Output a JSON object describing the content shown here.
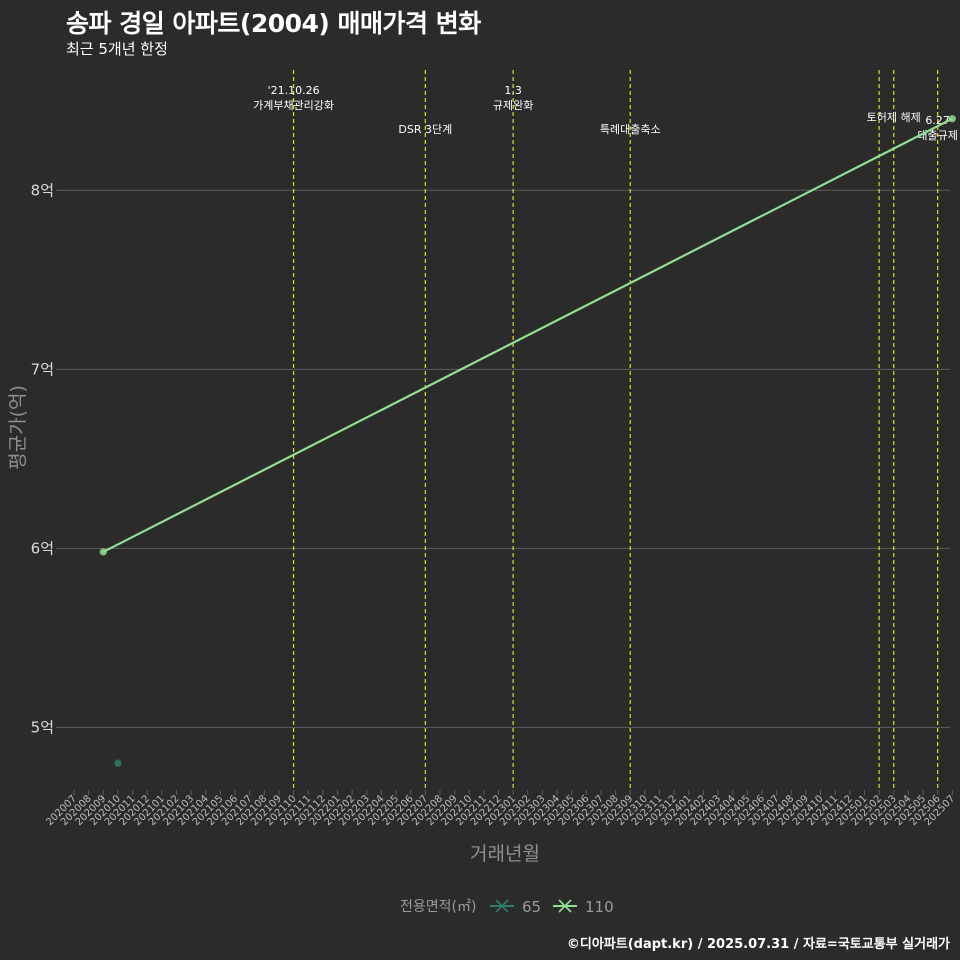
{
  "header": {
    "title": "송파 경일 아파트(2004) 매매가격 변화",
    "subtitle": "최근 5개년 한정"
  },
  "caption": "©디아파트(dapt.kr) / 2025.07.31 / 자료=국토교통부 실거래가",
  "colors": {
    "background": "#2b2b2b",
    "grid": "#5e5e5e",
    "vline": "#dede20",
    "series_65": "#2e7d6a",
    "series_110": "#90e090"
  },
  "chart_data": {
    "type": "line",
    "xlabel": "거래년월",
    "ylabel": "평균가(억)",
    "ylim": [
      4.65,
      8.7
    ],
    "y_ticks": [
      {
        "value": 5,
        "label": "5억"
      },
      {
        "value": 6,
        "label": "6억"
      },
      {
        "value": 7,
        "label": "7억"
      },
      {
        "value": 8,
        "label": "8억"
      }
    ],
    "x_categories": [
      "202007",
      "202008",
      "202009",
      "202010",
      "202011",
      "202012",
      "202101",
      "202102",
      "202103",
      "202104",
      "202105",
      "202106",
      "202107",
      "202108",
      "202109",
      "202110",
      "202111",
      "202112",
      "202201",
      "202202",
      "202203",
      "202204",
      "202205",
      "202206",
      "202207",
      "202208",
      "202209",
      "202210",
      "202211",
      "202212",
      "202301",
      "202302",
      "202303",
      "202304",
      "202305",
      "202306",
      "202307",
      "202308",
      "202309",
      "202310",
      "202311",
      "202312",
      "202401",
      "202402",
      "202403",
      "202404",
      "202405",
      "202406",
      "202407",
      "202408",
      "202409",
      "202410",
      "202411",
      "202412",
      "202501",
      "202502",
      "202503",
      "202504",
      "202505",
      "202506",
      "202507"
    ],
    "series": [
      {
        "name": "65",
        "points": [
          {
            "x": "202010",
            "y": 4.8
          }
        ]
      },
      {
        "name": "110",
        "points": [
          {
            "x": "202009",
            "y": 5.98
          },
          {
            "x": "202507",
            "y": 8.4
          }
        ]
      }
    ],
    "annotations": [
      {
        "x": "202110",
        "lines": [
          "'21.10.26",
          "가계부채관리강화"
        ],
        "row": 0
      },
      {
        "x": "202207",
        "lines": [
          "DSR 3단계"
        ],
        "row": 2
      },
      {
        "x": "202301",
        "lines": [
          "1.3",
          "규제완화"
        ],
        "row": 0
      },
      {
        "x": "202309",
        "lines": [
          "특례대출축소"
        ],
        "row": 2
      },
      {
        "x": "202502",
        "lines": [],
        "row": 0
      },
      {
        "x": "202503",
        "lines": [
          "토허제 해제"
        ],
        "row": 1
      },
      {
        "x": "202506",
        "lines": [
          "6.27",
          "대출규제"
        ],
        "row": 3
      }
    ],
    "legend": {
      "title": "전용면적(㎡)",
      "position": "bottom",
      "items": [
        "65",
        "110"
      ]
    }
  }
}
